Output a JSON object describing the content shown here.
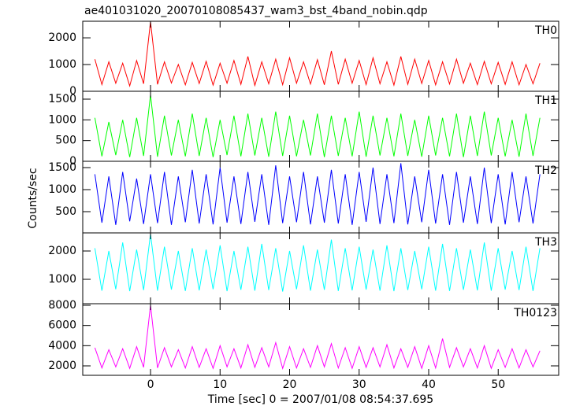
{
  "chart_data": [
    {
      "type": "line",
      "title": "ae401031020_20070108085437_wam3_bst_4band_nobin.qdp",
      "label": "TH0",
      "color": "#ff0000",
      "x": [
        -8,
        -7,
        -6,
        -5,
        -4,
        -3,
        -2,
        -1,
        0,
        1,
        2,
        3,
        4,
        5,
        6,
        7,
        8,
        9,
        10,
        11,
        12,
        13,
        14,
        15,
        16,
        17,
        18,
        19,
        20,
        21,
        22,
        23,
        24,
        25,
        26,
        27,
        28,
        29,
        30,
        31,
        32,
        33,
        34,
        35,
        36,
        37,
        38,
        39,
        40,
        41,
        42,
        43,
        44,
        45,
        46,
        47,
        48,
        49,
        50,
        51,
        52,
        53,
        54,
        55,
        56
      ],
      "values": [
        1200,
        250,
        1100,
        300,
        1050,
        200,
        1150,
        280,
        2600,
        260,
        1100,
        310,
        1000,
        240,
        1080,
        290,
        1120,
        230,
        1050,
        300,
        1150,
        260,
        1300,
        220,
        1100,
        280,
        1200,
        250,
        1250,
        300,
        1100,
        270,
        1180,
        240,
        1500,
        260,
        1200,
        300,
        1150,
        250,
        1250,
        280,
        1100,
        230,
        1300,
        260,
        1200,
        290,
        1150,
        240,
        1100,
        270,
        1200,
        300,
        1050,
        250,
        1120,
        280,
        1080,
        260,
        1100,
        240,
        1000,
        280,
        1050
      ],
      "xlim": [
        -9.75,
        58.7
      ],
      "ylim": [
        0,
        2620
      ],
      "yticks": [
        0,
        1000,
        2000
      ]
    },
    {
      "type": "line",
      "label": "TH1",
      "color": "#00ff00",
      "x": [
        -8,
        -7,
        -6,
        -5,
        -4,
        -3,
        -2,
        -1,
        0,
        1,
        2,
        3,
        4,
        5,
        6,
        7,
        8,
        9,
        10,
        11,
        12,
        13,
        14,
        15,
        16,
        17,
        18,
        19,
        20,
        21,
        22,
        23,
        24,
        25,
        26,
        27,
        28,
        29,
        30,
        31,
        32,
        33,
        34,
        35,
        36,
        37,
        38,
        39,
        40,
        41,
        42,
        43,
        44,
        45,
        46,
        47,
        48,
        49,
        50,
        51,
        52,
        53,
        54,
        55,
        56
      ],
      "values": [
        1050,
        120,
        950,
        150,
        1000,
        100,
        1050,
        130,
        1600,
        110,
        1100,
        140,
        1000,
        120,
        1150,
        130,
        1050,
        100,
        1000,
        150,
        1100,
        120,
        1150,
        140,
        1050,
        110,
        1200,
        130,
        1100,
        120,
        1000,
        140,
        1150,
        100,
        1100,
        130,
        1050,
        120,
        1200,
        110,
        1100,
        140,
        1050,
        120,
        1150,
        130,
        1000,
        110,
        1100,
        140,
        1050,
        120,
        1150,
        100,
        1100,
        130,
        1200,
        140,
        1050,
        120,
        1000,
        110,
        1150,
        130,
        1050
      ],
      "xlim": [
        -9.75,
        58.7
      ],
      "ylim": [
        0,
        1690
      ],
      "yticks": [
        0,
        500,
        1000,
        1500
      ]
    },
    {
      "type": "line",
      "label": "TH2",
      "color": "#0000ff",
      "ylabel": "Counts/sec",
      "x": [
        -8,
        -7,
        -6,
        -5,
        -4,
        -3,
        -2,
        -1,
        0,
        1,
        2,
        3,
        4,
        5,
        6,
        7,
        8,
        9,
        10,
        11,
        12,
        13,
        14,
        15,
        16,
        17,
        18,
        19,
        20,
        21,
        22,
        23,
        24,
        25,
        26,
        27,
        28,
        29,
        30,
        31,
        32,
        33,
        34,
        35,
        36,
        37,
        38,
        39,
        40,
        41,
        42,
        43,
        44,
        45,
        46,
        47,
        48,
        49,
        50,
        51,
        52,
        53,
        54,
        55,
        56
      ],
      "values": [
        1350,
        250,
        1300,
        200,
        1400,
        280,
        1250,
        220,
        1350,
        240,
        1400,
        200,
        1300,
        260,
        1450,
        230,
        1350,
        210,
        1500,
        250,
        1300,
        220,
        1400,
        270,
        1350,
        200,
        1550,
        240,
        1300,
        260,
        1400,
        210,
        1300,
        250,
        1450,
        230,
        1350,
        200,
        1400,
        270,
        1500,
        220,
        1350,
        240,
        1600,
        210,
        1300,
        260,
        1450,
        230,
        1350,
        200,
        1400,
        250,
        1300,
        220,
        1500,
        240,
        1350,
        210,
        1400,
        260,
        1300,
        230,
        1350
      ],
      "xlim": [
        -9.75,
        58.7
      ],
      "ylim": [
        18,
        1643
      ],
      "yticks": [
        500,
        1000,
        1500
      ]
    },
    {
      "type": "line",
      "label": "TH3",
      "color": "#00ffff",
      "x": [
        -8,
        -7,
        -6,
        -5,
        -4,
        -3,
        -2,
        -1,
        0,
        1,
        2,
        3,
        4,
        5,
        6,
        7,
        8,
        9,
        10,
        11,
        12,
        13,
        14,
        15,
        16,
        17,
        18,
        19,
        20,
        21,
        22,
        23,
        24,
        25,
        26,
        27,
        28,
        29,
        30,
        31,
        32,
        33,
        34,
        35,
        36,
        37,
        38,
        39,
        40,
        41,
        42,
        43,
        44,
        45,
        46,
        47,
        48,
        49,
        50,
        51,
        52,
        53,
        54,
        55,
        56
      ],
      "values": [
        2100,
        600,
        2000,
        650,
        2300,
        580,
        2050,
        620,
        2600,
        600,
        2150,
        640,
        2000,
        590,
        2100,
        610,
        2050,
        650,
        2200,
        580,
        2000,
        630,
        2150,
        600,
        2250,
        620,
        2100,
        570,
        2000,
        650,
        2200,
        600,
        2050,
        630,
        2400,
        590,
        2100,
        610,
        2150,
        640,
        2050,
        600,
        2200,
        580,
        2100,
        620,
        2000,
        650,
        2150,
        600,
        2250,
        590,
        2100,
        630,
        2050,
        610,
        2300,
        600,
        2100,
        640,
        2000,
        620,
        2150,
        590,
        2100
      ],
      "xlim": [
        -9.75,
        58.7
      ],
      "ylim": [
        139,
        2639
      ],
      "yticks": [
        1000,
        2000
      ]
    },
    {
      "type": "line",
      "label": "TH0123",
      "color": "#ff00ff",
      "xlabel": "Time [sec] 0 = 2007/01/08 08:54:37.695",
      "x": [
        -8,
        -7,
        -6,
        -5,
        -4,
        -3,
        -2,
        -1,
        0,
        1,
        2,
        3,
        4,
        5,
        6,
        7,
        8,
        9,
        10,
        11,
        12,
        13,
        14,
        15,
        16,
        17,
        18,
        19,
        20,
        21,
        22,
        23,
        24,
        25,
        26,
        27,
        28,
        29,
        30,
        31,
        32,
        33,
        34,
        35,
        36,
        37,
        38,
        39,
        40,
        41,
        42,
        43,
        44,
        45,
        46,
        47,
        48,
        49,
        50,
        51,
        52,
        53,
        54,
        55,
        56
      ],
      "values": [
        3800,
        1800,
        3600,
        1900,
        3700,
        1750,
        3900,
        1850,
        8000,
        1800,
        3800,
        1900,
        3600,
        1800,
        3900,
        1850,
        3700,
        1750,
        4000,
        1900,
        3700,
        1800,
        4100,
        1850,
        3800,
        1900,
        4300,
        1750,
        3900,
        1800,
        3700,
        1850,
        4000,
        1900,
        4200,
        1800,
        3800,
        1750,
        3900,
        1850,
        3800,
        1900,
        4100,
        1800,
        3700,
        1850,
        3900,
        1750,
        4000,
        1800,
        4700,
        1850,
        3800,
        1900,
        3700,
        1800,
        4000,
        1750,
        3600,
        1850,
        3700,
        1800,
        3600,
        1900,
        3500
      ],
      "xlim": [
        -9.75,
        58.7
      ],
      "ylim": [
        1065,
        8156
      ],
      "yticks": [
        2000,
        4000,
        6000,
        8000
      ],
      "xticks": [
        0,
        10,
        20,
        30,
        40,
        50
      ]
    }
  ]
}
